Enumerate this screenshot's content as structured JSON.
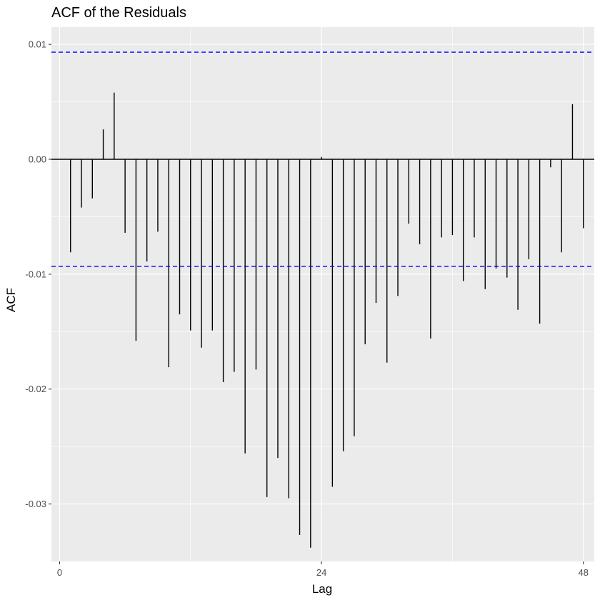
{
  "chart_data": {
    "type": "bar",
    "title": "ACF of the Residuals",
    "xlabel": "Lag",
    "ylabel": "ACF",
    "xlim": [
      -0.75,
      49
    ],
    "ylim": [
      -0.035,
      0.0115
    ],
    "x_ticks": [
      0,
      24,
      48
    ],
    "x_tick_labels": [
      "0",
      "24",
      "48"
    ],
    "y_ticks": [
      0.01,
      0.0,
      -0.01,
      -0.02,
      -0.03
    ],
    "y_tick_labels": [
      "0.01",
      "0.00",
      "-0.01",
      "-0.02",
      "-0.03"
    ],
    "grid": true,
    "confidence_bound": 0.00932,
    "lags": [
      1,
      2,
      3,
      4,
      5,
      6,
      7,
      8,
      9,
      10,
      11,
      12,
      13,
      14,
      15,
      16,
      17,
      18,
      19,
      20,
      21,
      22,
      23,
      24,
      25,
      26,
      27,
      28,
      29,
      30,
      31,
      32,
      33,
      34,
      35,
      36,
      37,
      38,
      39,
      40,
      41,
      42,
      43,
      44,
      45,
      46,
      47,
      48
    ],
    "values": [
      -0.0081,
      -0.0042,
      -0.0034,
      0.0026,
      0.0058,
      -0.0064,
      -0.0158,
      -0.0089,
      -0.0063,
      -0.0181,
      -0.0135,
      -0.0149,
      -0.0164,
      -0.0149,
      -0.0194,
      -0.0185,
      -0.0256,
      -0.0183,
      -0.0294,
      -0.026,
      -0.0295,
      -0.0327,
      -0.0338,
      0.0002,
      -0.0285,
      -0.0254,
      -0.0241,
      -0.0161,
      -0.0125,
      -0.0177,
      -0.0119,
      -0.0056,
      -0.0074,
      -0.0156,
      -0.0068,
      -0.0066,
      -0.0106,
      -0.0068,
      -0.0113,
      -0.0095,
      -0.0103,
      -0.0131,
      -0.0087,
      -0.0143,
      -0.0007,
      -0.0081,
      0.0048,
      -0.006
    ],
    "colors": {
      "panel": "#ebebeb",
      "grid": "#ffffff",
      "bar": "#000000",
      "bound": "#0000ff",
      "tick_text": "#4d4d4d"
    }
  }
}
